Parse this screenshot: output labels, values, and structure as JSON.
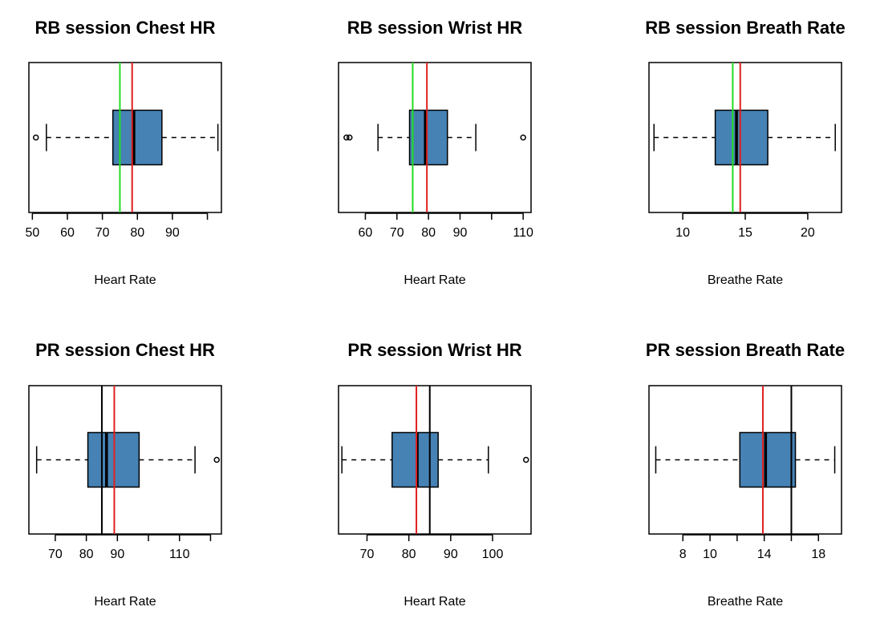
{
  "colors": {
    "box_fill": "#4682B4",
    "median": "#000000",
    "green_line": "#22DD22",
    "red_line": "#E02020",
    "black_line": "#000000"
  },
  "chart_data": [
    {
      "type": "boxplot",
      "title": "RB session Chest HR",
      "xlabel": "Heart Rate",
      "xlim": [
        49,
        104
      ],
      "ticks": [
        50,
        60,
        70,
        80,
        90,
        100
      ],
      "tick_labels": [
        "50",
        "60",
        "70",
        "80",
        "90",
        ""
      ],
      "whisker_low": 54,
      "q1": 73,
      "median": 79,
      "q3": 87,
      "whisker_high": 103,
      "outliers": [
        51
      ],
      "vlines": [
        {
          "value": 75,
          "color": "green"
        },
        {
          "value": 78.5,
          "color": "red"
        }
      ]
    },
    {
      "type": "boxplot",
      "title": "RB session Wrist HR",
      "xlabel": "Heart Rate",
      "xlim": [
        51.5,
        112.5
      ],
      "ticks": [
        60,
        70,
        80,
        90,
        100,
        110
      ],
      "tick_labels": [
        "60",
        "70",
        "80",
        "90",
        "",
        "110"
      ],
      "whisker_low": 64,
      "q1": 74,
      "median": 79,
      "q3": 86,
      "whisker_high": 95,
      "outliers": [
        54,
        55,
        110
      ],
      "vlines": [
        {
          "value": 75,
          "color": "green"
        },
        {
          "value": 79.5,
          "color": "red"
        }
      ]
    },
    {
      "type": "boxplot",
      "title": "RB session Breath Rate",
      "xlabel": "Breathe Rate",
      "xlim": [
        7.3,
        22.7
      ],
      "ticks": [
        10,
        15,
        20
      ],
      "tick_labels": [
        "10",
        "15",
        "20"
      ],
      "whisker_low": 7.7,
      "q1": 12.6,
      "median": 14.3,
      "q3": 16.8,
      "whisker_high": 22.2,
      "outliers": [],
      "vlines": [
        {
          "value": 14.0,
          "color": "green"
        },
        {
          "value": 14.6,
          "color": "red"
        }
      ]
    },
    {
      "type": "boxplot",
      "title": "PR session Chest HR",
      "xlabel": "Heart Rate",
      "xlim": [
        61.5,
        123.5
      ],
      "ticks": [
        70,
        80,
        90,
        100,
        110,
        120
      ],
      "tick_labels": [
        "70",
        "80",
        "90",
        "",
        "110",
        ""
      ],
      "whisker_low": 64,
      "q1": 80.5,
      "median": 86.5,
      "q3": 97,
      "whisker_high": 115,
      "outliers": [
        122
      ],
      "vlines": [
        {
          "value": 85,
          "color": "black"
        },
        {
          "value": 89,
          "color": "red"
        }
      ]
    },
    {
      "type": "boxplot",
      "title": "PR session Wrist HR",
      "xlabel": "Heart Rate",
      "xlim": [
        63.2,
        109.2
      ],
      "ticks": [
        70,
        80,
        90,
        100
      ],
      "tick_labels": [
        "70",
        "80",
        "90",
        "100"
      ],
      "whisker_low": 64,
      "q1": 76,
      "median": 82,
      "q3": 87,
      "whisker_high": 99,
      "outliers": [
        108
      ],
      "vlines": [
        {
          "value": 85,
          "color": "black"
        },
        {
          "value": 81.8,
          "color": "red"
        }
      ]
    },
    {
      "type": "boxplot",
      "title": "PR session Breath Rate",
      "xlabel": "Breathe Rate",
      "xlim": [
        5.5,
        19.7
      ],
      "ticks": [
        8,
        10,
        12,
        14,
        16,
        18
      ],
      "tick_labels": [
        "8",
        "10",
        "",
        "14",
        "",
        "18"
      ],
      "whisker_low": 6,
      "q1": 12.2,
      "median": 14.1,
      "q3": 16.3,
      "whisker_high": 19.2,
      "outliers": [],
      "vlines": [
        {
          "value": 16,
          "color": "black"
        },
        {
          "value": 13.9,
          "color": "red"
        }
      ]
    }
  ]
}
